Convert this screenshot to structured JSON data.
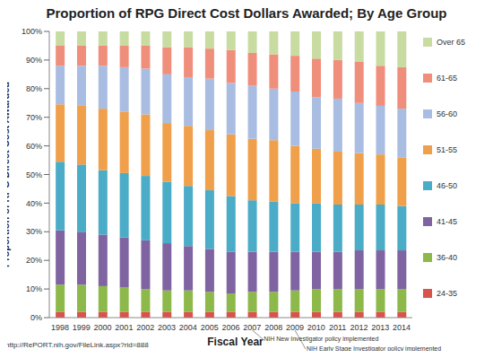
{
  "chart_data": {
    "type": "bar",
    "title": "Proportion of RPG Direct Cost Dollars Awarded; By Age Group",
    "x_label": "Fiscal Year",
    "y_label": "Proportion of RPG Direct Cost Awarded",
    "source": "http://RePORT.nih.gov/FileLink.aspx?rid=888",
    "stacked": true,
    "grid": false,
    "legend": "right",
    "categories": [
      "1998",
      "1999",
      "2000",
      "2001",
      "2002",
      "2003",
      "2004",
      "2005",
      "2006",
      "2007",
      "2008",
      "2009",
      "2010",
      "2011",
      "2012",
      "2013",
      "2014"
    ],
    "series": [
      {
        "name": "24-35",
        "color": "#d9534a",
        "values": [
          2,
          2,
          2,
          2,
          2,
          2,
          2,
          2,
          2,
          2,
          2,
          2,
          2,
          2,
          2,
          2,
          2
        ]
      },
      {
        "name": "36-40",
        "color": "#8db84a",
        "values": [
          9.5,
          9.5,
          9,
          8.5,
          8,
          7.5,
          7.5,
          7,
          6.5,
          7,
          7,
          7.5,
          8,
          8,
          8,
          8,
          8
        ]
      },
      {
        "name": "41-45",
        "color": "#8064a2",
        "values": [
          19,
          18.5,
          18,
          17.5,
          17,
          16.5,
          15.5,
          15,
          14.5,
          14,
          14,
          13.5,
          13,
          13,
          13.5,
          13.5,
          13.5
        ]
      },
      {
        "name": "46-50",
        "color": "#4aacc6",
        "values": [
          24,
          23.5,
          22.5,
          22.5,
          22.5,
          21.5,
          21,
          20.5,
          19.5,
          18,
          17.5,
          17,
          17,
          16.5,
          16,
          16,
          15.5
        ]
      },
      {
        "name": "51-55",
        "color": "#f0a04b",
        "values": [
          20,
          20.5,
          21.5,
          21.5,
          21.5,
          20.5,
          21,
          21,
          21.5,
          21.5,
          21.5,
          20,
          19,
          18.5,
          18,
          17.5,
          17
        ]
      },
      {
        "name": "56-60",
        "color": "#a9bde2",
        "values": [
          13.5,
          14,
          15,
          15.5,
          16,
          17,
          17,
          18,
          18,
          18.5,
          18,
          19,
          18,
          18.5,
          17.5,
          17,
          17
        ]
      },
      {
        "name": "61-65",
        "color": "#f08e7c",
        "values": [
          7,
          7,
          7,
          7.5,
          8,
          9.5,
          10.5,
          10.5,
          11.5,
          11.5,
          12,
          12.5,
          13.5,
          13.5,
          14.5,
          14,
          14.5
        ]
      },
      {
        "name": "Over 65",
        "color": "#c8dca2",
        "values": [
          5,
          5,
          5,
          5,
          5,
          5.5,
          5.5,
          6,
          6.5,
          7.5,
          8,
          8.5,
          9.5,
          10,
          10.5,
          12,
          12.5
        ]
      }
    ],
    "ylim": [
      0,
      100
    ],
    "yticks": [
      {
        "value": 0,
        "label": "0%"
      },
      {
        "value": 10,
        "label": "10%"
      },
      {
        "value": 20,
        "label": "20%"
      },
      {
        "value": 30,
        "label": "30%"
      },
      {
        "value": 40,
        "label": "40%"
      },
      {
        "value": 50,
        "label": "50%"
      },
      {
        "value": 60,
        "label": "60%"
      },
      {
        "value": 70,
        "label": "70%"
      },
      {
        "value": 80,
        "label": "80%"
      },
      {
        "value": 90,
        "label": "90%"
      },
      {
        "value": 100,
        "label": "100%"
      }
    ],
    "annotations": [
      {
        "text": "NIH New Investigator policy implemented",
        "x": "2007"
      },
      {
        "text": "NIH Early Stage Investigator policy implemented",
        "x": "2009"
      }
    ]
  }
}
